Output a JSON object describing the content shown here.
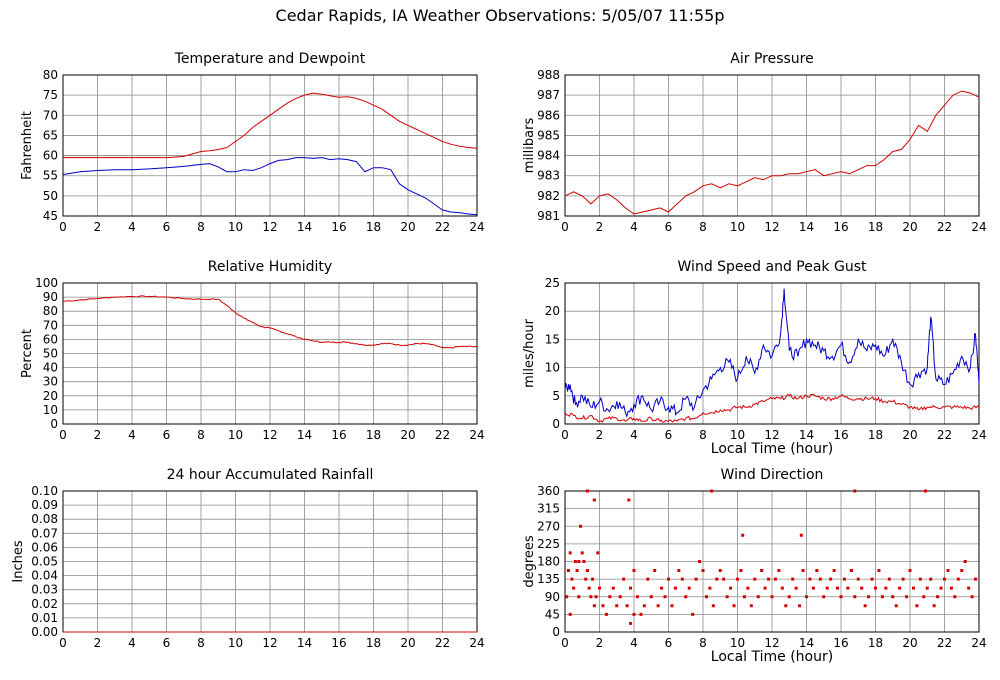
{
  "title": "Cedar Rapids, IA Weather Observations: 5/05/07 11:55p",
  "colors": {
    "red": "#d40000",
    "blue": "#0000c8",
    "grid": "#8c8c8c",
    "axis": "#000000"
  },
  "chart_data": [
    {
      "id": "temp",
      "type": "line",
      "title": "Temperature and Dewpoint",
      "xlabel": "",
      "ylabel": "Fahrenheit",
      "xlim": [
        0,
        24
      ],
      "ylim": [
        45,
        80
      ],
      "xticks": [
        0,
        2,
        4,
        6,
        8,
        10,
        12,
        14,
        16,
        18,
        20,
        22,
        24
      ],
      "yticks": [
        45,
        50,
        55,
        60,
        65,
        70,
        75,
        80
      ],
      "series": [
        {
          "color": "#d40000",
          "x": [
            0,
            2,
            4,
            6,
            7,
            8,
            8.5,
            9,
            9.5,
            10,
            10.5,
            11,
            11.5,
            12,
            12.5,
            13,
            13.5,
            14,
            14.5,
            15,
            15.5,
            16,
            16.5,
            17,
            17.5,
            18,
            18.5,
            19,
            19.5,
            20,
            20.5,
            21,
            21.5,
            22,
            22.5,
            23,
            23.5,
            24
          ],
          "y": [
            59.5,
            59.5,
            59.5,
            59.5,
            59.8,
            61,
            61.2,
            61.5,
            62,
            63.5,
            65,
            67,
            68.5,
            70,
            71.5,
            73,
            74.2,
            75,
            75.5,
            75.2,
            74.8,
            74.5,
            74.6,
            74.2,
            73.5,
            72.5,
            71.5,
            70,
            68.5,
            67.5,
            66.5,
            65.5,
            64.5,
            63.5,
            62.8,
            62.3,
            62,
            61.8
          ]
        },
        {
          "color": "#0000c8",
          "x": [
            0,
            1,
            2,
            3,
            4,
            5,
            6,
            7,
            8,
            8.5,
            9,
            9.5,
            10,
            10.5,
            11,
            11.5,
            12,
            12.5,
            13,
            13.5,
            14,
            14.5,
            15,
            15.5,
            16,
            16.5,
            17,
            17.5,
            18,
            18.5,
            19,
            19.5,
            20,
            20.5,
            21,
            21.5,
            22,
            22.5,
            23,
            23.5,
            24
          ],
          "y": [
            55.3,
            56,
            56.3,
            56.5,
            56.5,
            56.7,
            57,
            57.3,
            57.8,
            58,
            57.2,
            56,
            56,
            56.5,
            56.3,
            57,
            58,
            58.8,
            59,
            59.5,
            59.5,
            59.3,
            59.5,
            59,
            59.2,
            59,
            58.5,
            56,
            57,
            57,
            56.5,
            53,
            51.5,
            50.5,
            49.5,
            48,
            46.5,
            46,
            45.8,
            45.5,
            45.3
          ]
        }
      ]
    },
    {
      "id": "pressure",
      "type": "line",
      "title": "Air Pressure",
      "xlabel": "",
      "ylabel": "millibars",
      "xlim": [
        0,
        24
      ],
      "ylim": [
        981,
        988
      ],
      "xticks": [
        0,
        2,
        4,
        6,
        8,
        10,
        12,
        14,
        16,
        18,
        20,
        22,
        24
      ],
      "yticks": [
        981,
        982,
        983,
        984,
        985,
        986,
        987,
        988
      ],
      "series": [
        {
          "color": "#d40000",
          "x": [
            0,
            0.5,
            1,
            1.5,
            2,
            2.5,
            3,
            3.5,
            4,
            4.5,
            5,
            5.5,
            6,
            6.5,
            7,
            7.5,
            8,
            8.5,
            9,
            9.5,
            10,
            10.5,
            11,
            11.5,
            12,
            12.5,
            13,
            13.5,
            14,
            14.5,
            15,
            15.5,
            16,
            16.5,
            17,
            17.5,
            18,
            18.5,
            19,
            19.5,
            20,
            20.5,
            21,
            21.5,
            22,
            22.5,
            23,
            23.5,
            24
          ],
          "y": [
            982,
            982.2,
            982,
            981.6,
            982,
            982.1,
            981.8,
            981.4,
            981.1,
            981.2,
            981.3,
            981.4,
            981.2,
            981.6,
            982,
            982.2,
            982.5,
            982.6,
            982.4,
            982.6,
            982.5,
            982.7,
            982.9,
            982.8,
            983,
            983,
            983.1,
            983.1,
            983.2,
            983.3,
            983,
            983.1,
            983.2,
            983.1,
            983.3,
            983.5,
            983.5,
            983.8,
            984.2,
            984.3,
            984.8,
            985.5,
            985.2,
            986,
            986.5,
            987,
            987.2,
            987.1,
            986.9
          ]
        }
      ]
    },
    {
      "id": "humidity",
      "type": "line",
      "title": "Relative Humidity",
      "xlabel": "",
      "ylabel": "Percent",
      "xlim": [
        0,
        24
      ],
      "ylim": [
        0,
        100
      ],
      "xticks": [
        0,
        2,
        4,
        6,
        8,
        10,
        12,
        14,
        16,
        18,
        20,
        22,
        24
      ],
      "yticks": [
        0,
        10,
        20,
        30,
        40,
        50,
        60,
        70,
        80,
        90,
        100
      ],
      "series": [
        {
          "color": "#d40000",
          "x": [
            0,
            1,
            2,
            3,
            4,
            5,
            6,
            7,
            8,
            9,
            9.5,
            10,
            10.5,
            11,
            11.5,
            12,
            12.5,
            13,
            13.5,
            14,
            14.5,
            15,
            15.5,
            16,
            16.5,
            17,
            17.5,
            18,
            18.5,
            19,
            19.5,
            20,
            20.5,
            21,
            21.5,
            22,
            22.5,
            23,
            23.5,
            24
          ],
          "y": [
            87,
            88,
            89,
            90,
            90.5,
            90.5,
            90,
            89,
            88.5,
            88.5,
            84,
            79,
            75,
            72,
            69,
            68,
            66,
            64,
            62,
            60,
            59,
            58,
            58,
            58,
            58,
            57,
            56,
            56,
            57,
            57,
            56,
            56,
            57,
            57,
            56,
            54,
            54,
            55,
            55,
            55
          ],
          "roughness": 0.8
        }
      ]
    },
    {
      "id": "wind",
      "type": "line",
      "title": "Wind Speed and Peak Gust",
      "xlabel": "Local Time (hour)",
      "ylabel": "miles/hour",
      "xlim": [
        0,
        24
      ],
      "ylim": [
        0,
        25
      ],
      "xticks": [
        0,
        2,
        4,
        6,
        8,
        10,
        12,
        14,
        16,
        18,
        20,
        22,
        24
      ],
      "yticks": [
        0,
        5,
        10,
        15,
        20,
        25
      ],
      "series": [
        {
          "color": "#0000c8",
          "x": [
            0,
            0.3,
            0.6,
            1,
            1.5,
            2,
            2.5,
            3,
            3.5,
            4,
            4.5,
            5,
            5.5,
            6,
            6.5,
            7,
            7.5,
            8,
            8.5,
            9,
            9.5,
            10,
            10.5,
            11,
            11.5,
            12,
            12.5,
            12.7,
            13,
            13.5,
            14,
            14.5,
            15,
            15.5,
            16,
            16.5,
            17,
            17.5,
            18,
            18.5,
            19,
            19.5,
            20,
            20.5,
            21,
            21.2,
            21.5,
            22,
            22.5,
            23,
            23.5,
            23.8,
            24
          ],
          "y": [
            6,
            7,
            3.5,
            5,
            3,
            4,
            2.5,
            4,
            2,
            3.5,
            5,
            2.5,
            4,
            3,
            2,
            4.5,
            3,
            6,
            8,
            10,
            11,
            8,
            12,
            9,
            14,
            12,
            16,
            24,
            13,
            12,
            15,
            14,
            13,
            12,
            14,
            11,
            15,
            13,
            14,
            12,
            15,
            11,
            7,
            9,
            10,
            19,
            8,
            7,
            9,
            12,
            10,
            16,
            7
          ],
          "roughness": 2.2
        },
        {
          "color": "#d40000",
          "x": [
            0,
            0.5,
            1,
            1.5,
            2,
            2.5,
            3,
            3.5,
            4,
            4.5,
            5,
            5.5,
            6,
            6.5,
            7,
            7.5,
            8,
            8.5,
            9,
            9.5,
            10,
            10.5,
            11,
            11.5,
            12,
            12.5,
            13,
            13.5,
            14,
            14.5,
            15,
            15.5,
            16,
            16.5,
            17,
            17.5,
            18,
            18.5,
            19,
            19.5,
            20,
            20.5,
            21,
            21.5,
            22,
            22.5,
            23,
            23.5,
            24
          ],
          "y": [
            2,
            1.5,
            1,
            1.5,
            0.5,
            1,
            1,
            0.5,
            1,
            0.5,
            1,
            0.5,
            0.5,
            0.5,
            1,
            1,
            2,
            2,
            2.5,
            2.5,
            3,
            3,
            3.5,
            4,
            4.5,
            4.5,
            5,
            4.5,
            5,
            5,
            4.5,
            4.5,
            5,
            4.5,
            4.5,
            4.5,
            4.5,
            4,
            4,
            3.5,
            3,
            2.5,
            3,
            3,
            3,
            3,
            3,
            2.8,
            3
          ],
          "roughness": 0.7
        }
      ]
    },
    {
      "id": "rain",
      "type": "line",
      "title": "24 hour Accumulated Rainfall",
      "xlabel": "",
      "ylabel": "Inches",
      "xlim": [
        0,
        24
      ],
      "ylim": [
        0,
        0.1
      ],
      "xticks": [
        0,
        2,
        4,
        6,
        8,
        10,
        12,
        14,
        16,
        18,
        20,
        22,
        24
      ],
      "yticks": [
        "0.00",
        "0.01",
        "0.02",
        "0.03",
        "0.04",
        "0.05",
        "0.06",
        "0.07",
        "0.08",
        "0.09",
        "0.10"
      ],
      "series": [
        {
          "color": "#d40000",
          "x": [
            0,
            24
          ],
          "y": [
            0,
            0
          ]
        }
      ]
    },
    {
      "id": "winddir",
      "type": "scatter",
      "title": "Wind Direction",
      "xlabel": "Local Time (hour)",
      "ylabel": "degrees",
      "xlim": [
        0,
        24
      ],
      "ylim": [
        0,
        360
      ],
      "xticks": [
        0,
        2,
        4,
        6,
        8,
        10,
        12,
        14,
        16,
        18,
        20,
        22,
        24
      ],
      "yticks": [
        0,
        45,
        90,
        135,
        180,
        225,
        270,
        315,
        360
      ],
      "series": [
        {
          "color": "#d40000",
          "x": [
            0.1,
            0.2,
            0.3,
            0.4,
            0.5,
            0.6,
            0.7,
            0.8,
            0.9,
            1.0,
            1.1,
            1.2,
            1.3,
            1.4,
            1.5,
            1.6,
            1.7,
            1.8,
            1.9,
            2.0,
            2.2,
            2.4,
            2.6,
            2.8,
            3.0,
            3.2,
            3.4,
            3.6,
            3.8,
            4.0,
            4.2,
            4.4,
            4.6,
            4.8,
            5.0,
            5.2,
            5.4,
            5.6,
            5.8,
            6.0,
            6.2,
            6.4,
            6.6,
            6.8,
            7.0,
            7.2,
            7.4,
            7.6,
            7.8,
            8.0,
            8.2,
            8.4,
            8.6,
            8.8,
            9.0,
            9.2,
            9.4,
            9.6,
            9.8,
            10.0,
            10.2,
            10.4,
            10.6,
            10.8,
            11.0,
            11.2,
            11.4,
            11.6,
            11.8,
            12.0,
            12.2,
            12.4,
            12.6,
            12.8,
            13.0,
            13.2,
            13.4,
            13.6,
            13.8,
            14.0,
            14.2,
            14.4,
            14.6,
            14.8,
            15.0,
            15.2,
            15.4,
            15.6,
            15.8,
            16.0,
            16.2,
            16.4,
            16.6,
            16.8,
            17.0,
            17.2,
            17.4,
            17.6,
            17.8,
            18.0,
            18.2,
            18.4,
            18.6,
            18.8,
            19.0,
            19.2,
            19.4,
            19.6,
            19.8,
            20.0,
            20.2,
            20.4,
            20.6,
            20.8,
            21.0,
            21.2,
            21.4,
            21.6,
            21.8,
            22.0,
            22.2,
            22.4,
            22.6,
            22.8,
            23.0,
            23.2,
            23.4,
            23.6,
            23.8,
            1.3,
            1.7,
            3.7,
            8.5,
            16.8,
            20.9,
            10.3,
            13.7,
            0.8,
            0.3,
            3.8,
            4.0
          ],
          "y": [
            90,
            157,
            45,
            135,
            112,
            180,
            157,
            90,
            270,
            202,
            180,
            135,
            157,
            112,
            90,
            135,
            67,
            90,
            202,
            112,
            67,
            45,
            90,
            112,
            67,
            90,
            135,
            67,
            112,
            157,
            90,
            45,
            67,
            135,
            90,
            157,
            67,
            112,
            90,
            135,
            67,
            112,
            157,
            135,
            90,
            112,
            45,
            135,
            180,
            157,
            90,
            112,
            67,
            135,
            157,
            135,
            90,
            112,
            67,
            135,
            157,
            90,
            112,
            67,
            135,
            90,
            157,
            112,
            135,
            90,
            135,
            157,
            112,
            67,
            90,
            135,
            112,
            67,
            157,
            90,
            135,
            112,
            157,
            135,
            90,
            112,
            135,
            157,
            112,
            90,
            135,
            112,
            157,
            90,
            135,
            112,
            67,
            90,
            135,
            112,
            157,
            90,
            112,
            135,
            90,
            67,
            112,
            135,
            90,
            157,
            112,
            67,
            135,
            90,
            112,
            135,
            67,
            90,
            112,
            135,
            157,
            112,
            90,
            135,
            157,
            180,
            112,
            90,
            135,
            360,
            337,
            337,
            360,
            360,
            360,
            247,
            247,
            180,
            202,
            22,
            45
          ]
        }
      ]
    }
  ]
}
